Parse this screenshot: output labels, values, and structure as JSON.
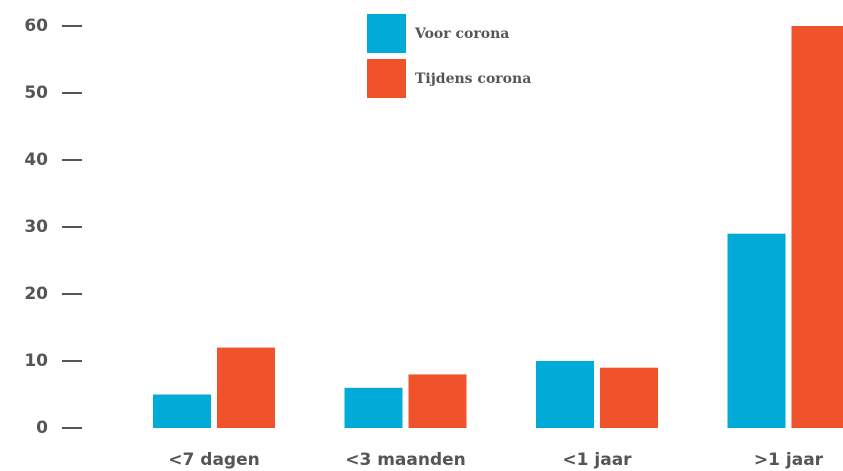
{
  "chart_data": {
    "type": "bar",
    "categories": [
      "<7 dagen",
      "<3 maanden",
      "<1 jaar",
      ">1 jaar"
    ],
    "series": [
      {
        "name": "Voor corona",
        "color": "#00acd7",
        "values": [
          5,
          6,
          10,
          29
        ]
      },
      {
        "name": "Tijdens corona",
        "color": "#f0532b",
        "values": [
          12,
          8,
          9,
          60
        ]
      }
    ],
    "ylim": [
      0,
      60
    ],
    "yticks": [
      0,
      10,
      20,
      30,
      40,
      50,
      60
    ]
  }
}
